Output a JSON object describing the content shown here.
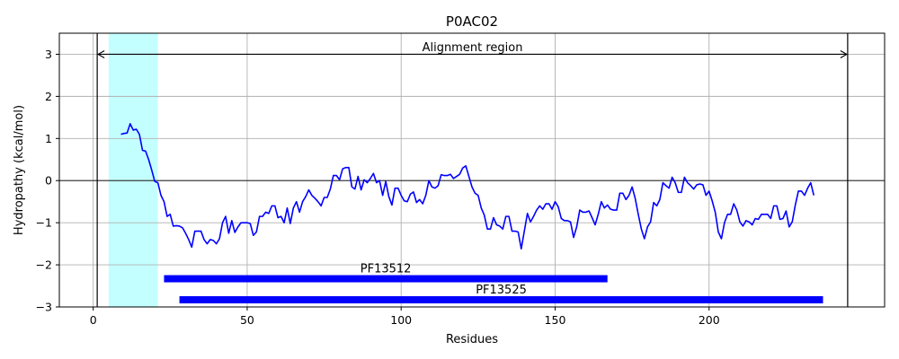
{
  "chart_data": {
    "type": "line",
    "title": "P0AC02",
    "xlabel": "Residues",
    "ylabel": "Hydropathy (kcal/mol)",
    "xlim": [
      -11,
      257
    ],
    "ylim": [
      -3,
      3.5
    ],
    "xticks": [
      0,
      50,
      100,
      150,
      200
    ],
    "yticks": [
      -3,
      -2,
      -1,
      0,
      1,
      2,
      3
    ],
    "xtick_labels": [
      "0",
      "50",
      "100",
      "150",
      "200"
    ],
    "ytick_labels": [
      "−3",
      "−2",
      "−1",
      "0",
      "1",
      "2",
      "3"
    ],
    "grid": true,
    "zero_line": 0,
    "series": [
      {
        "color": "#0000ff",
        "x_start": 9,
        "values": [
          1.1,
          1.12,
          1.13,
          1.35,
          1.2,
          1.22,
          1.1,
          0.72,
          0.7,
          0.5,
          0.25,
          -0.02,
          -0.05,
          -0.35,
          -0.5,
          -0.85,
          -0.8,
          -1.08,
          -1.07,
          -1.08,
          -1.12,
          -1.25,
          -1.4,
          -1.58,
          -1.2,
          -1.2,
          -1.2,
          -1.4,
          -1.5,
          -1.4,
          -1.42,
          -1.5,
          -1.38,
          -1.0,
          -0.85,
          -1.25,
          -0.95,
          -1.23,
          -1.1,
          -1.0,
          -1.0,
          -1.0,
          -1.02,
          -1.3,
          -1.22,
          -0.85,
          -0.85,
          -0.75,
          -0.78,
          -0.6,
          -0.6,
          -0.88,
          -0.85,
          -1.0,
          -0.65,
          -1.02,
          -0.65,
          -0.5,
          -0.75,
          -0.5,
          -0.38,
          -0.22,
          -0.35,
          -0.42,
          -0.5,
          -0.6,
          -0.4,
          -0.4,
          -0.2,
          0.12,
          0.12,
          0.02,
          0.28,
          0.31,
          0.31,
          -0.15,
          -0.2,
          0.1,
          -0.22,
          0.02,
          -0.05,
          0.05,
          0.17,
          -0.05,
          0.0,
          -0.35,
          -0.02,
          -0.38,
          -0.58,
          -0.18,
          -0.18,
          -0.35,
          -0.48,
          -0.5,
          -0.32,
          -0.27,
          -0.52,
          -0.45,
          -0.55,
          -0.35,
          0.0,
          -0.15,
          -0.18,
          -0.12,
          0.14,
          0.12,
          0.12,
          0.15,
          0.05,
          0.1,
          0.15,
          0.3,
          0.35,
          0.1,
          -0.15,
          -0.3,
          -0.35,
          -0.65,
          -0.82,
          -1.15,
          -1.15,
          -0.88,
          -1.05,
          -1.08,
          -1.15,
          -0.85,
          -0.85,
          -1.2,
          -1.2,
          -1.22,
          -1.62,
          -1.2,
          -0.78,
          -0.98,
          -0.85,
          -0.7,
          -0.6,
          -0.68,
          -0.55,
          -0.55,
          -0.68,
          -0.5,
          -0.62,
          -0.9,
          -0.95,
          -0.95,
          -0.98,
          -1.35,
          -1.1,
          -0.7,
          -0.75,
          -0.75,
          -0.72,
          -0.88,
          -1.05,
          -0.8,
          -0.5,
          -0.65,
          -0.58,
          -0.68,
          -0.7,
          -0.7,
          -0.3,
          -0.3,
          -0.45,
          -0.35,
          -0.15,
          -0.42,
          -0.8,
          -1.15,
          -1.38,
          -1.1,
          -0.98,
          -0.52,
          -0.6,
          -0.45,
          -0.05,
          -0.12,
          -0.18,
          0.08,
          -0.05,
          -0.28,
          -0.28,
          0.08,
          -0.05,
          -0.12,
          -0.2,
          -0.1,
          -0.08,
          -0.1,
          -0.35,
          -0.25,
          -0.48,
          -0.75,
          -1.22,
          -1.38,
          -1.0,
          -0.8,
          -0.8,
          -0.55,
          -0.7,
          -0.98,
          -1.08,
          -0.95,
          -0.98,
          -1.05,
          -0.9,
          -0.92,
          -0.8,
          -0.8,
          -0.8,
          -0.9,
          -0.6,
          -0.6,
          -0.92,
          -0.9,
          -0.72,
          -1.1,
          -0.98,
          -0.58,
          -0.25,
          -0.25,
          -0.35,
          -0.18,
          -0.05,
          -0.35
        ]
      }
    ],
    "shaded_span": {
      "x0": 5,
      "x1": 21,
      "color": "#c4ffff"
    },
    "vlines": [
      1.3,
      245
    ],
    "alignment_arrow": {
      "x0": 1.3,
      "x1": 245,
      "y": 3,
      "label": "Alignment region"
    },
    "domains": [
      {
        "label": "PF13512",
        "x0": 23,
        "x1": 167,
        "y": -2.33,
        "color": "#0000ff"
      },
      {
        "label": "PF13525",
        "x0": 28,
        "x1": 237,
        "y": -2.83,
        "color": "#0000ff"
      }
    ]
  }
}
